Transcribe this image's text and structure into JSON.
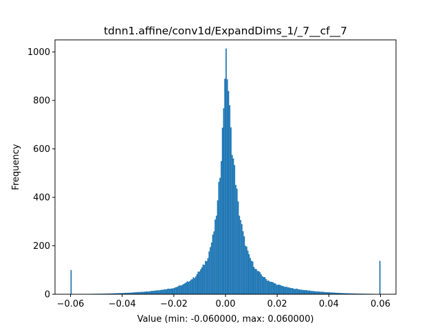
{
  "chart_data": {
    "type": "bar",
    "title": "tdnn1.affine/conv1d/ExpandDims_1/_7__cf__7",
    "xlabel": "Value (min: -0.060000, max: 0.060000)",
    "ylabel": "Frequency",
    "xlim": [
      -0.066,
      0.066
    ],
    "ylim": [
      0,
      1050
    ],
    "xticks": [
      -0.06,
      -0.04,
      -0.02,
      0.0,
      0.02,
      0.04,
      0.06
    ],
    "xtick_labels": [
      "−0.06",
      "−0.04",
      "−0.02",
      "0.00",
      "0.02",
      "0.04",
      "0.06"
    ],
    "yticks": [
      0,
      200,
      400,
      600,
      800,
      1000
    ],
    "ytick_labels": [
      "0",
      "200",
      "400",
      "600",
      "800",
      "1000"
    ],
    "bins": {
      "min": -0.06,
      "max": 0.06,
      "count": 256
    },
    "bar_color": "#1f77b4",
    "profile": [
      [
        -0.06,
        100
      ],
      [
        -0.0595,
        0
      ],
      [
        -0.055,
        1
      ],
      [
        -0.05,
        2
      ],
      [
        -0.045,
        3
      ],
      [
        -0.04,
        5
      ],
      [
        -0.035,
        8
      ],
      [
        -0.03,
        12
      ],
      [
        -0.025,
        18
      ],
      [
        -0.02,
        26
      ],
      [
        -0.016,
        42
      ],
      [
        -0.012,
        70
      ],
      [
        -0.009,
        110
      ],
      [
        -0.007,
        150
      ],
      [
        -0.005,
        230
      ],
      [
        -0.004,
        290
      ],
      [
        -0.003,
        380
      ],
      [
        -0.002,
        520
      ],
      [
        -0.001,
        700
      ],
      [
        0.0,
        990
      ],
      [
        0.001,
        880
      ],
      [
        0.002,
        680
      ],
      [
        0.003,
        560
      ],
      [
        0.004,
        470
      ],
      [
        0.005,
        360
      ],
      [
        0.006,
        300
      ],
      [
        0.007,
        240
      ],
      [
        0.009,
        160
      ],
      [
        0.012,
        100
      ],
      [
        0.016,
        60
      ],
      [
        0.02,
        40
      ],
      [
        0.025,
        26
      ],
      [
        0.03,
        18
      ],
      [
        0.035,
        12
      ],
      [
        0.04,
        8
      ],
      [
        0.045,
        5
      ],
      [
        0.05,
        3
      ],
      [
        0.055,
        2
      ],
      [
        0.0595,
        1
      ],
      [
        0.06,
        138
      ]
    ],
    "grid": false,
    "legend": "none"
  }
}
